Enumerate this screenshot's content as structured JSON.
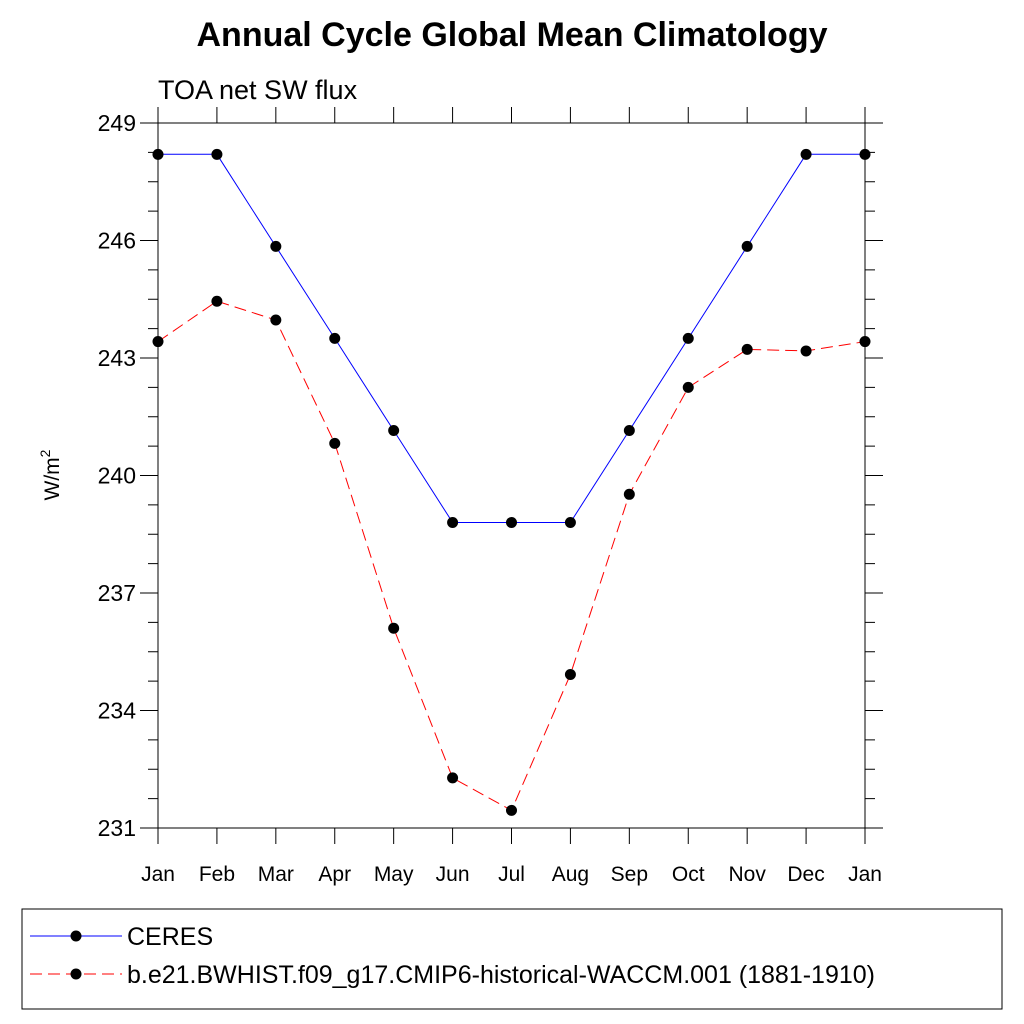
{
  "chart_data": {
    "type": "line",
    "title": "Annual Cycle Global Mean Climatology",
    "subtitle": "TOA net SW flux",
    "ylabel": "W/m",
    "ylabel_superscript": "2",
    "xlabel": "",
    "categories": [
      "Jan",
      "Feb",
      "Mar",
      "Apr",
      "May",
      "Jun",
      "Jul",
      "Aug",
      "Sep",
      "Oct",
      "Nov",
      "Dec",
      "Jan"
    ],
    "yticks": [
      "249",
      "246",
      "243",
      "240",
      "237",
      "234",
      "231"
    ],
    "ylim": [
      231,
      249
    ],
    "grid": false,
    "legend_position": "bottom",
    "series": [
      {
        "name": "CERES",
        "color": "#0000ff",
        "line_style": "solid",
        "marker": "filled-circle",
        "values": [
          248.2,
          248.2,
          245.85,
          243.5,
          241.15,
          238.8,
          238.8,
          238.8,
          241.15,
          243.5,
          245.85,
          248.2,
          248.2
        ]
      },
      {
        "name": "b.e21.BWHIST.f09_g17.CMIP6-historical-WACCM.001 (1881-1910)",
        "color": "#ff0000",
        "line_style": "dashed",
        "marker": "filled-circle",
        "values": [
          243.42,
          244.45,
          243.97,
          240.82,
          236.1,
          232.28,
          231.45,
          234.92,
          239.52,
          242.25,
          243.22,
          243.18,
          243.42
        ]
      }
    ]
  }
}
